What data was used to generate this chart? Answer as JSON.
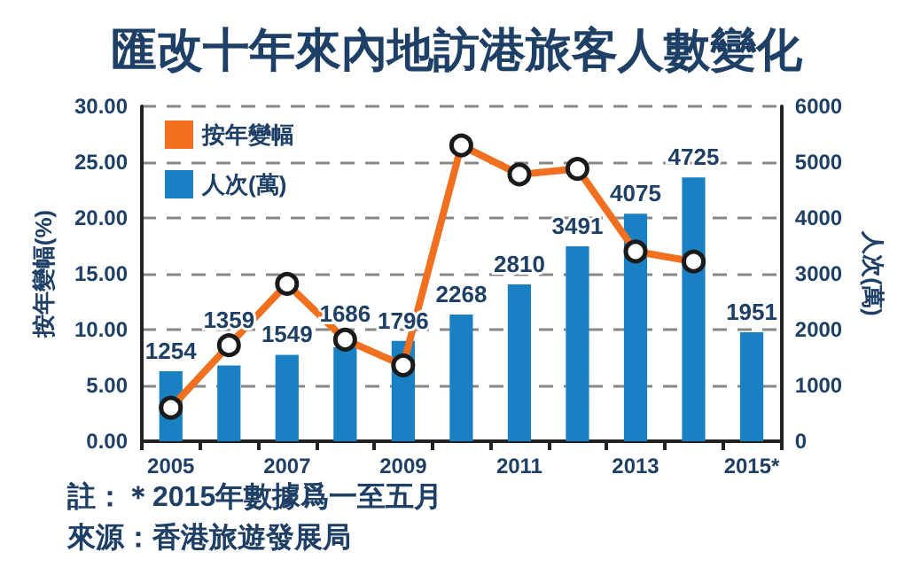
{
  "chart_data": {
    "type": "bar",
    "title": "匯改十年來內地訪港旅客人數變化",
    "categories": [
      "2005",
      null,
      "2007",
      null,
      "2009",
      null,
      "2011",
      null,
      "2013",
      null,
      "2015*"
    ],
    "series": [
      {
        "name": "按年變幅",
        "type": "line",
        "color": "#f07020",
        "values": [
          3.0,
          8.6,
          14.1,
          9.1,
          6.8,
          26.5,
          23.9,
          24.4,
          17.0,
          16.1,
          null
        ]
      },
      {
        "name": "人次(萬)",
        "axis": "y2",
        "color": "#1a80c4",
        "values": [
          1254,
          1359,
          1549,
          1686,
          1796,
          2268,
          2810,
          3491,
          4075,
          4725,
          1951
        ],
        "value_labels": [
          "1254",
          "1359",
          "1549",
          "1686",
          "1796",
          "2268",
          "2810",
          "3491",
          "4075",
          "4725",
          "1951"
        ]
      }
    ],
    "ylabel": "按年變幅(%)",
    "y2label": "人次(萬)",
    "ylim": [
      0,
      30
    ],
    "yticks": [
      {
        "value": 0,
        "label": "0.00"
      },
      {
        "value": 5,
        "label": "5.00"
      },
      {
        "value": 10,
        "label": "10.00"
      },
      {
        "value": 15,
        "label": "15.00"
      },
      {
        "value": 20,
        "label": "20.00"
      },
      {
        "value": 25,
        "label": "25.00"
      },
      {
        "value": 30,
        "label": "30.00"
      }
    ],
    "y2lim": [
      0,
      6000
    ],
    "y2ticks": [
      0,
      1000,
      2000,
      3000,
      4000,
      5000,
      6000
    ],
    "grid": "y",
    "legend": "top left",
    "marker": "circle",
    "line_style": "solid",
    "annotations": [
      "註：＊2015年數據爲一至五月",
      "來源：香港旅遊發展局"
    ]
  }
}
